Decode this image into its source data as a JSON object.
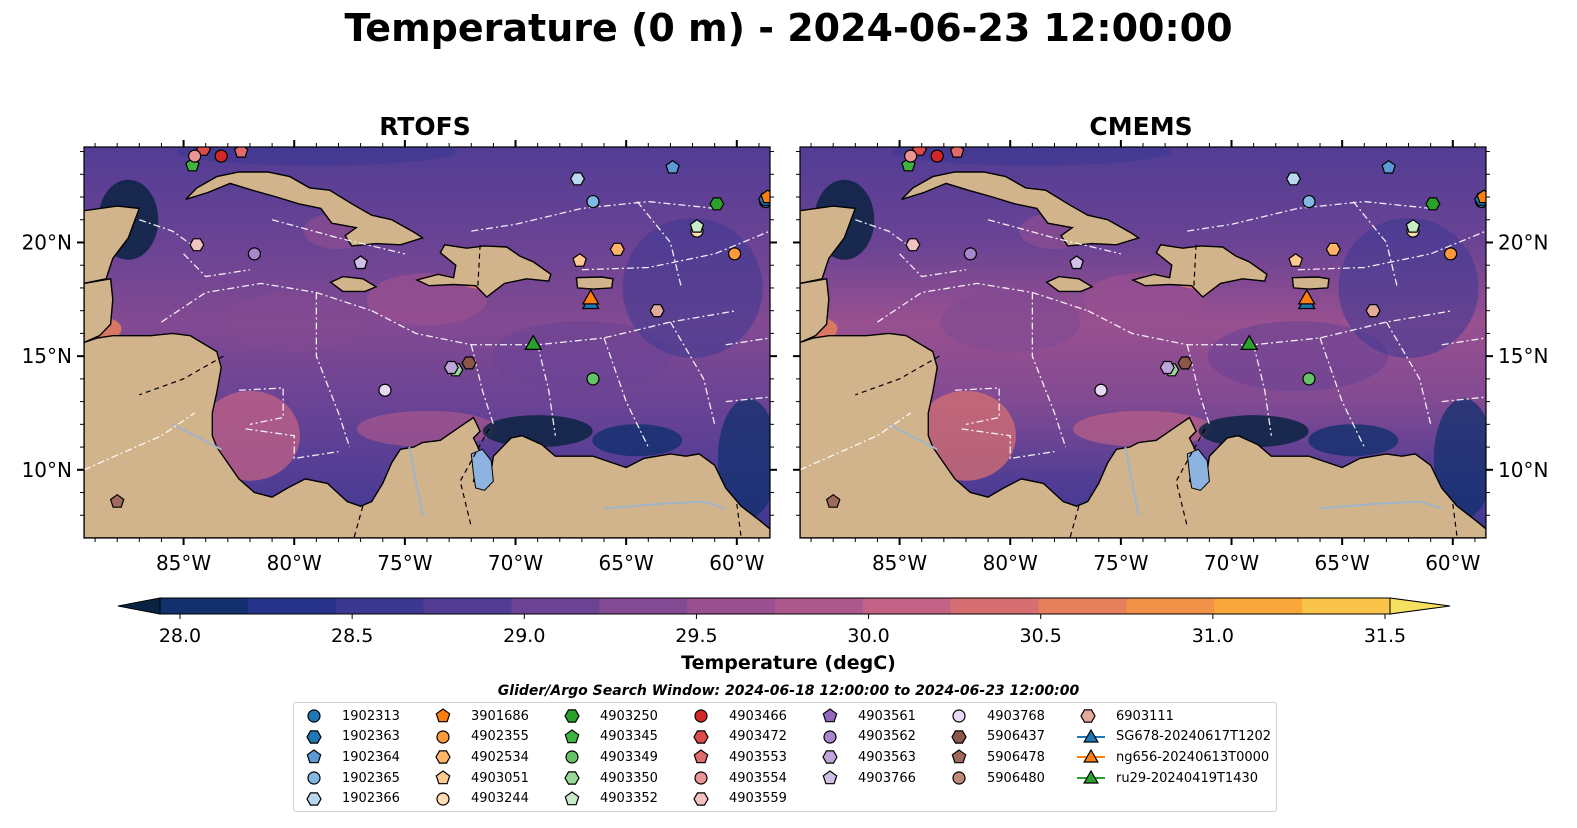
{
  "title": "Temperature (0 m) - 2024-06-23 12:00:00",
  "panels": [
    {
      "title": "RTOFS"
    },
    {
      "title": "CMEMS"
    }
  ],
  "axes": {
    "lon_ticks": [
      "85°W",
      "80°W",
      "75°W",
      "70°W",
      "65°W",
      "60°W"
    ],
    "lat_ticks": [
      "20°N",
      "15°N",
      "10°N"
    ],
    "lon_range": [
      -89.5,
      -58.5
    ],
    "lat_range": [
      7.0,
      24.2
    ]
  },
  "colorbar": {
    "label": "Temperature (degC)",
    "min": 28.0,
    "max": 31.5,
    "step": 0.25,
    "extend": "both",
    "ticks": [
      "28.0",
      "28.5",
      "29.0",
      "29.5",
      "30.0",
      "30.5",
      "31.0",
      "31.5"
    ],
    "colors": [
      "#0b2342",
      "#12306e",
      "#27338b",
      "#3c3892",
      "#523d95",
      "#6b4394",
      "#824a92",
      "#985090",
      "#ad588c",
      "#c26284",
      "#d56f72",
      "#e67f5c",
      "#f29148",
      "#f9a63a",
      "#fac34a",
      "#f6e060"
    ]
  },
  "search_window": "Glider/Argo Search Window: 2024-06-18 12:00:00 to 2024-06-23 12:00:00",
  "colors": {
    "land": "#d2b48c",
    "lake": "#8db3e0",
    "river": "#a0b4c8",
    "contour": "#ffffff"
  },
  "legend": {
    "columns": [
      [
        {
          "label": "1902313",
          "marker": "circle",
          "color": "#1f77b4"
        },
        {
          "label": "1902363",
          "marker": "hexagon",
          "color": "#1f77b4"
        },
        {
          "label": "1902364",
          "marker": "pentagon",
          "color": "#5b9ad4"
        },
        {
          "label": "1902365",
          "marker": "circle",
          "color": "#7fb8e3"
        },
        {
          "label": "1902366",
          "marker": "hexagon",
          "color": "#b9d8f0"
        }
      ],
      [
        {
          "label": "3901686",
          "marker": "pentagon",
          "color": "#ff7f0e"
        },
        {
          "label": "4902355",
          "marker": "circle",
          "color": "#ff9a3c"
        },
        {
          "label": "4902534",
          "marker": "hexagon",
          "color": "#ffb467"
        },
        {
          "label": "4903051",
          "marker": "pentagon",
          "color": "#ffc98f"
        },
        {
          "label": "4903244",
          "marker": "circle",
          "color": "#ffdcb4"
        }
      ],
      [
        {
          "label": "4903250",
          "marker": "hexagon",
          "color": "#2ca02c"
        },
        {
          "label": "4903345",
          "marker": "pentagon",
          "color": "#3fb53f"
        },
        {
          "label": "4903349",
          "marker": "circle",
          "color": "#66c266"
        },
        {
          "label": "4903350",
          "marker": "hexagon",
          "color": "#98d998"
        },
        {
          "label": "4903352",
          "marker": "pentagon",
          "color": "#c8ecc8"
        }
      ],
      [
        {
          "label": "4903466",
          "marker": "circle",
          "color": "#d62728"
        },
        {
          "label": "4903472",
          "marker": "hexagon",
          "color": "#dc4a4a"
        },
        {
          "label": "4903553",
          "marker": "pentagon",
          "color": "#e36a6a"
        },
        {
          "label": "4903554",
          "marker": "circle",
          "color": "#ec9494"
        },
        {
          "label": "4903559",
          "marker": "hexagon",
          "color": "#f5c2c2"
        }
      ],
      [
        {
          "label": "4903561",
          "marker": "pentagon",
          "color": "#9467bd"
        },
        {
          "label": "4903562",
          "marker": "circle",
          "color": "#a987cc"
        },
        {
          "label": "4903563",
          "marker": "hexagon",
          "color": "#bea6da"
        },
        {
          "label": "4903766",
          "marker": "pentagon",
          "color": "#d1bfe7"
        }
      ],
      [
        {
          "label": "4903768",
          "marker": "circle",
          "color": "#e7d9f4"
        },
        {
          "label": "5906437",
          "marker": "hexagon",
          "color": "#8c564b"
        },
        {
          "label": "5906478",
          "marker": "pentagon",
          "color": "#a0695d"
        },
        {
          "label": "5906480",
          "marker": "circle",
          "color": "#c08a78"
        }
      ],
      [
        {
          "label": "6903111",
          "marker": "hexagon",
          "color": "#e3ab99"
        },
        {
          "label": "SG678-20240617T1202",
          "marker": "triangle-line",
          "color": "#1f77b4"
        },
        {
          "label": "ng656-20240613T0000",
          "marker": "triangle-line",
          "color": "#ff7f0e"
        },
        {
          "label": "ru29-20240419T1430",
          "marker": "triangle-line",
          "color": "#2ca02c"
        }
      ]
    ]
  },
  "floats": [
    {
      "id": "1902313",
      "lon": -58.7,
      "lat": 21.8
    },
    {
      "id": "1902363",
      "lon": -58.7,
      "lat": 21.9
    },
    {
      "id": "1902364",
      "lon": -62.9,
      "lat": 23.3
    },
    {
      "id": "1902365",
      "lon": -66.5,
      "lat": 21.8
    },
    {
      "id": "1902366",
      "lon": -67.2,
      "lat": 22.8
    },
    {
      "id": "3901686",
      "lon": -58.6,
      "lat": 22.0
    },
    {
      "id": "4902355",
      "lon": -60.1,
      "lat": 19.5
    },
    {
      "id": "4902534",
      "lon": -65.4,
      "lat": 19.7
    },
    {
      "id": "4903051",
      "lon": -67.1,
      "lat": 19.2
    },
    {
      "id": "4903244",
      "lon": -61.8,
      "lat": 20.5
    },
    {
      "id": "4903250",
      "lon": -60.9,
      "lat": 21.7
    },
    {
      "id": "4903345",
      "lon": -84.6,
      "lat": 23.4
    },
    {
      "id": "4903349",
      "lon": -66.5,
      "lat": 14.0
    },
    {
      "id": "4903350",
      "lon": -72.7,
      "lat": 14.4
    },
    {
      "id": "4903352",
      "lon": -61.8,
      "lat": 20.7
    },
    {
      "id": "4903466",
      "lon": -83.3,
      "lat": 23.8
    },
    {
      "id": "4903472",
      "lon": -84.1,
      "lat": 24.1
    },
    {
      "id": "4903553",
      "lon": -82.4,
      "lat": 24.0
    },
    {
      "id": "4903554",
      "lon": -84.5,
      "lat": 23.8
    },
    {
      "id": "4903559",
      "lon": -84.4,
      "lat": 19.9
    },
    {
      "id": "4903561",
      "lon": -77.0,
      "lat": 19.1
    },
    {
      "id": "4903562",
      "lon": -81.8,
      "lat": 19.5
    },
    {
      "id": "4903563",
      "lon": -72.9,
      "lat": 14.5
    },
    {
      "id": "4903766",
      "lon": -77.0,
      "lat": 19.1
    },
    {
      "id": "4903768",
      "lon": -75.9,
      "lat": 13.5
    },
    {
      "id": "5906437",
      "lon": -72.1,
      "lat": 14.7
    },
    {
      "id": "5906478",
      "lon": -88.0,
      "lat": 8.6
    },
    {
      "id": "5906480",
      "lon": -63.6,
      "lat": 17.0
    },
    {
      "id": "6903111",
      "lon": -63.6,
      "lat": 17.0
    }
  ],
  "gliders": [
    {
      "id": "SG678-20240617T1202",
      "lon": -66.6,
      "lat": 17.3
    },
    {
      "id": "ng656-20240613T0000",
      "lon": -66.6,
      "lat": 17.5
    },
    {
      "id": "ru29-20240419T1430",
      "lon": -69.2,
      "lat": 15.5
    }
  ]
}
